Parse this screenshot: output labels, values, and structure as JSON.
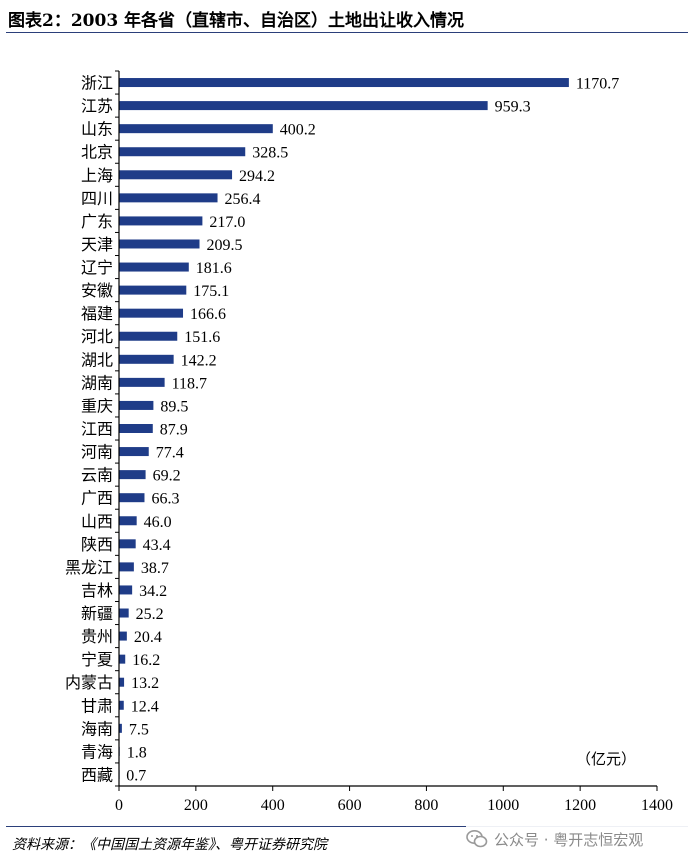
{
  "title": "图表2：2003 年各省（直辖市、自治区）土地出让收入情况",
  "unit_label": "（亿元）",
  "source": "资料来源：《中国国土资源年鉴》、粤开证券研究院",
  "watermark": "公众号 · 粤开志恒宏观",
  "colors": {
    "bar": "#1f3c88",
    "axis": "#000000",
    "title_rule": "#2b3f7a"
  },
  "chart_data": {
    "type": "bar",
    "orientation": "horizontal",
    "categories": [
      "浙江",
      "江苏",
      "山东",
      "北京",
      "上海",
      "四川",
      "广东",
      "天津",
      "辽宁",
      "安徽",
      "福建",
      "河北",
      "湖北",
      "湖南",
      "重庆",
      "江西",
      "河南",
      "云南",
      "广西",
      "山西",
      "陕西",
      "黑龙江",
      "吉林",
      "新疆",
      "贵州",
      "宁夏",
      "内蒙古",
      "甘肃",
      "海南",
      "青海",
      "西藏"
    ],
    "values": [
      1170.7,
      959.3,
      400.2,
      328.5,
      294.2,
      256.4,
      217.0,
      209.5,
      181.6,
      175.1,
      166.6,
      151.6,
      142.2,
      118.7,
      89.5,
      87.9,
      77.4,
      69.2,
      66.3,
      46.0,
      43.4,
      38.7,
      34.2,
      25.2,
      20.4,
      16.2,
      13.2,
      12.4,
      7.5,
      1.8,
      0.7
    ],
    "value_labels": [
      "1170.7",
      "959.3",
      "400.2",
      "328.5",
      "294.2",
      "256.4",
      "217.0",
      "209.5",
      "181.6",
      "175.1",
      "166.6",
      "151.6",
      "142.2",
      "118.7",
      "89.5",
      "87.9",
      "77.4",
      "69.2",
      "66.3",
      "46.0",
      "43.4",
      "38.7",
      "34.2",
      "25.2",
      "20.4",
      "16.2",
      "13.2",
      "12.4",
      "7.5",
      "1.8",
      "0.7"
    ],
    "xlim": [
      0,
      1400
    ],
    "x_ticks": [
      "0",
      "200",
      "400",
      "600",
      "800",
      "1000",
      "1200",
      "1400"
    ],
    "grid": false,
    "legend": "none"
  }
}
